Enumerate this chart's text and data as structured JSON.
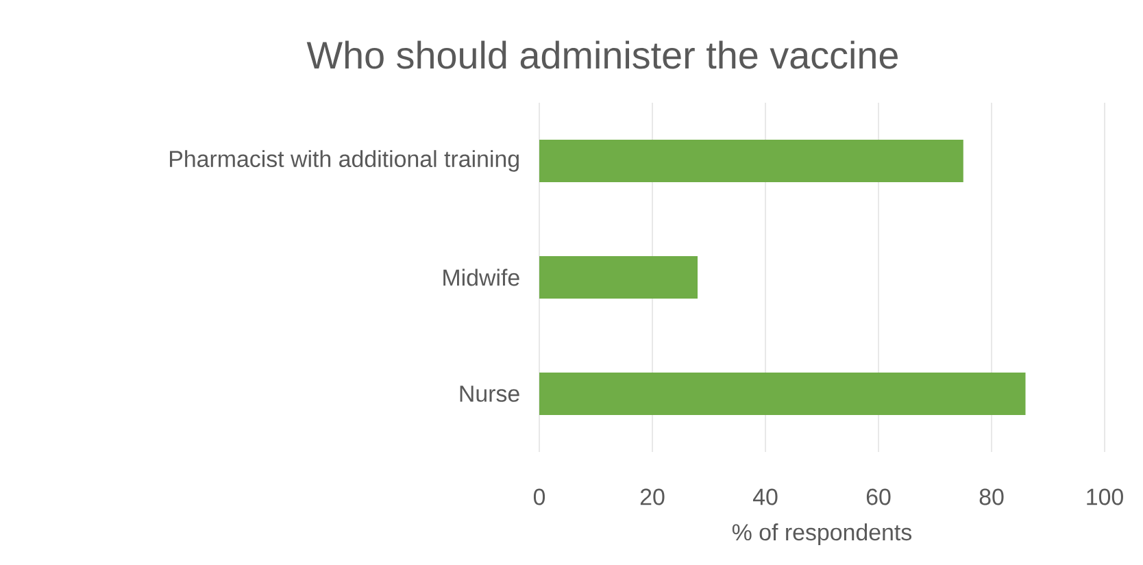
{
  "chart_data": {
    "type": "bar",
    "orientation": "horizontal",
    "title": "Who should administer the vaccine",
    "xlabel": "% of respondents",
    "categories": [
      "Pharmacist with additional training",
      "Midwife",
      "Nurse"
    ],
    "values": [
      75,
      28,
      86
    ],
    "color": "#70ad47",
    "xlim": [
      0,
      100
    ],
    "xticks": [
      0,
      20,
      40,
      60,
      80,
      100
    ],
    "grid": "x"
  }
}
